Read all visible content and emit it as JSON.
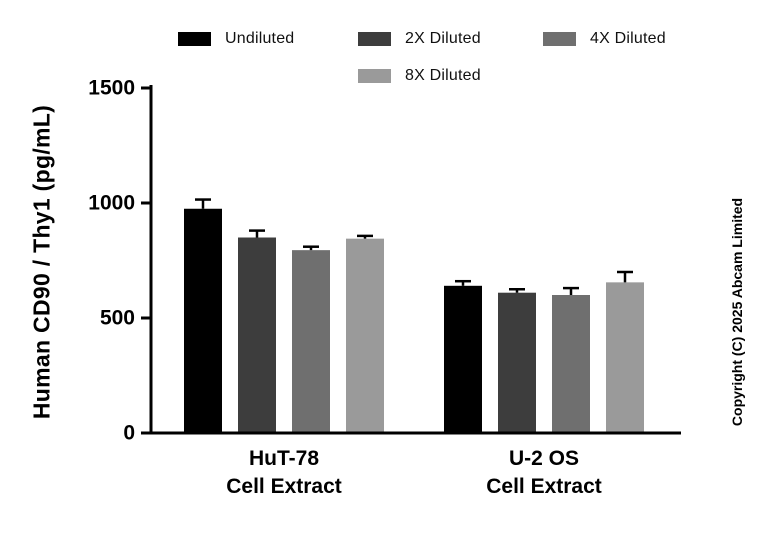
{
  "watermark": "Copyright (C) 2025 Abcam Limited",
  "chart_data": {
    "type": "bar",
    "title": "",
    "xlabel": "",
    "ylabel": "Human CD90 / Thy1 (pg/mL)",
    "ylim": [
      0,
      1500
    ],
    "yticks": [
      0,
      500,
      1000,
      1500
    ],
    "grid": false,
    "legend_position": "top",
    "categories": [
      [
        "HuT-78",
        "Cell Extract"
      ],
      [
        "U-2 OS",
        "Cell Extract"
      ]
    ],
    "series": [
      {
        "name": "Undiluted",
        "color": "#000000",
        "values": [
          975,
          640
        ],
        "errors": [
          40,
          20
        ]
      },
      {
        "name": "2X Diluted",
        "color": "#3d3d3d",
        "values": [
          850,
          610
        ],
        "errors": [
          30,
          15
        ]
      },
      {
        "name": "4X Diluted",
        "color": "#6f6f6f",
        "values": [
          795,
          600
        ],
        "errors": [
          15,
          30
        ]
      },
      {
        "name": "8X Diluted",
        "color": "#9a9a9a",
        "values": [
          845,
          655
        ],
        "errors": [
          12,
          45
        ]
      }
    ]
  }
}
